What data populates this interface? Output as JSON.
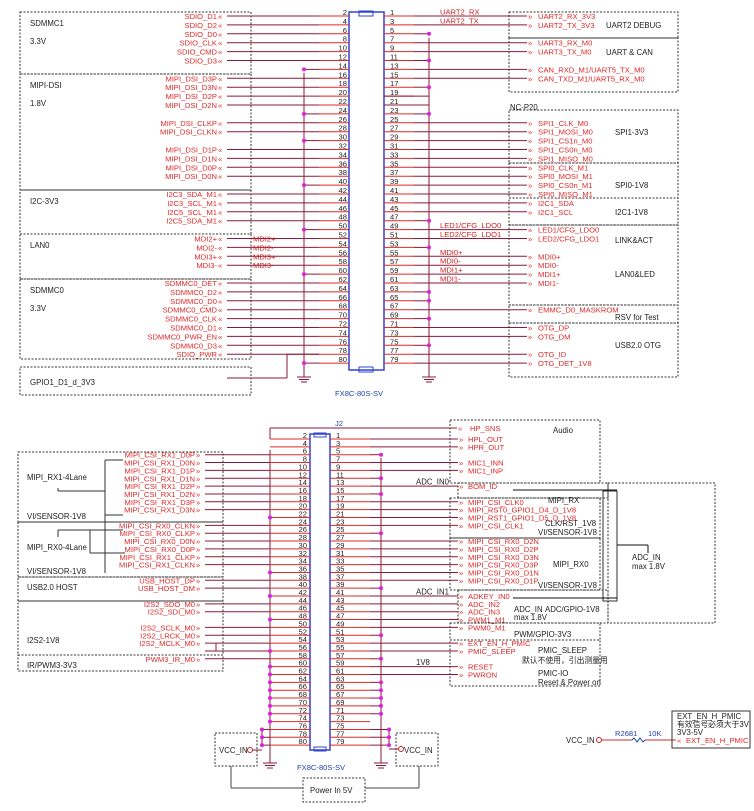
{
  "colors": {
    "signal_text": "#e02828",
    "wire": "#8b1a3a",
    "stub": "#e02828",
    "junction": "#e020e0",
    "connector": "#3344cc",
    "title_blue": "#1e7fd8"
  },
  "top": {
    "part": "FX8C-80S-SV",
    "pin_count": 80,
    "board_title": "NC-P20",
    "left_signals": [
      {
        "pin": 2,
        "label": "SDIO_D1"
      },
      {
        "pin": 4,
        "label": "SDIO_D2"
      },
      {
        "pin": 6,
        "label": "SDIO_D0"
      },
      {
        "pin": 8,
        "label": "SDIO_CLK"
      },
      {
        "pin": 10,
        "label": "SDIO_CMD"
      },
      {
        "pin": 12,
        "label": "SDIO_D3"
      },
      {
        "pin": 16,
        "label": "MIPI_DSI_D3P"
      },
      {
        "pin": 18,
        "label": "MIPI_DSI_D3N"
      },
      {
        "pin": 20,
        "label": "MIPI_DSI_D2P"
      },
      {
        "pin": 22,
        "label": "MIPI_DSI_D2N"
      },
      {
        "pin": 26,
        "label": "MIPI_DSI_CLKP"
      },
      {
        "pin": 28,
        "label": "MIPI_DSI_CLKN"
      },
      {
        "pin": 32,
        "label": "MIPI_DSI_D1P"
      },
      {
        "pin": 34,
        "label": "MIPI_DSI_D1N"
      },
      {
        "pin": 36,
        "label": "MIPI_DSI_D0P"
      },
      {
        "pin": 38,
        "label": "MIPI_DSI_D0N"
      },
      {
        "pin": 42,
        "label": "I2C3_SDA_M1"
      },
      {
        "pin": 44,
        "label": "I2C3_SCL_M1"
      },
      {
        "pin": 46,
        "label": "I2C5_SCL_M1"
      },
      {
        "pin": 48,
        "label": "I2C5_SDA_M1"
      },
      {
        "pin": 52,
        "label": "MDI2+",
        "mid": "MDI2+"
      },
      {
        "pin": 54,
        "label": "MDI2-",
        "mid": "MDI2-"
      },
      {
        "pin": 56,
        "label": "MDI3+",
        "mid": "MDI3+"
      },
      {
        "pin": 58,
        "label": "MDI3-",
        "mid": "MDI3-"
      },
      {
        "pin": 62,
        "label": "SDMMC0_DET"
      },
      {
        "pin": 64,
        "label": "SDMMC0_D2"
      },
      {
        "pin": 66,
        "label": "SDMMC0_D0"
      },
      {
        "pin": 68,
        "label": "SDMMC0_CMD"
      },
      {
        "pin": 70,
        "label": "SDMMC0_CLK"
      },
      {
        "pin": 72,
        "label": "SDMMC0_D1"
      },
      {
        "pin": 74,
        "label": "SDMMC0_PWR_EN"
      },
      {
        "pin": 76,
        "label": "SDMMC0_D3"
      },
      {
        "pin": 78,
        "label": "SDIO_PWR"
      }
    ],
    "left_ground_pins": [
      14,
      24,
      30,
      40,
      50,
      60,
      80
    ],
    "right_signals": [
      {
        "pin": 1,
        "label": "UART2_RX_3V3",
        "mid": "UART2_RX"
      },
      {
        "pin": 3,
        "label": "UART2_TX_3V3",
        "mid": "UART2_TX"
      },
      {
        "pin": 7,
        "label": "UART3_RX_M0"
      },
      {
        "pin": 9,
        "label": "UART3_TX_M0"
      },
      {
        "pin": 13,
        "label": "CAN_RXD_M1/UART5_TX_M0"
      },
      {
        "pin": 15,
        "label": "CAN_TXD_M1/UART5_RX_M0"
      },
      {
        "pin": 25,
        "label": "SPI1_CLK_M0"
      },
      {
        "pin": 27,
        "label": "SPI1_MOSI_M0"
      },
      {
        "pin": 29,
        "label": "SPI1_CS1n_M0"
      },
      {
        "pin": 31,
        "label": "SPI1_CS0n_M0"
      },
      {
        "pin": 33,
        "label": "SPI1_MISO_M0"
      },
      {
        "pin": 35,
        "label": "SPI0_CLK_M1"
      },
      {
        "pin": 37,
        "label": "SPI0_MOSI_M1"
      },
      {
        "pin": 39,
        "label": "SPI0_CS0n_M1"
      },
      {
        "pin": 41,
        "label": "SPI0_MISO_M1"
      },
      {
        "pin": 43,
        "label": "I2C1_SDA"
      },
      {
        "pin": 45,
        "label": "I2C1_SCL"
      },
      {
        "pin": 49,
        "label": "LED1/CFG_LDO0",
        "mid": "LED1/CFG_LDO0"
      },
      {
        "pin": 51,
        "label": "LED2/CFG_LDO1",
        "mid": "LED2/CFG_LDO1"
      },
      {
        "pin": 55,
        "label": "MDI0+",
        "mid": "MDI0+"
      },
      {
        "pin": 57,
        "label": "MDI0-",
        "mid": "MDI0-"
      },
      {
        "pin": 59,
        "label": "MDI1+",
        "mid": "MDI1+"
      },
      {
        "pin": 61,
        "label": "MDI1-",
        "mid": "MDI1-"
      },
      {
        "pin": 67,
        "label": "EMMC_D0_MASKROM"
      },
      {
        "pin": 71,
        "label": "OTG_DP"
      },
      {
        "pin": 73,
        "label": "OTG_DM"
      },
      {
        "pin": 77,
        "label": "OTG_ID"
      },
      {
        "pin": 79,
        "label": "OTG_DET_1V8"
      }
    ],
    "right_ground_pins": [
      5,
      11,
      17,
      23,
      47,
      53,
      63,
      65,
      69,
      75
    ],
    "left_groups": [
      {
        "title": "SDMMC1",
        "sub": "3.3V"
      },
      {
        "title": "MIPI-DSI",
        "sub": "1.8V"
      },
      {
        "title": "I2C-3V3",
        "sub": ""
      },
      {
        "title": "LAN0",
        "sub": ""
      },
      {
        "title": "SDMMC0",
        "sub": "3.3V"
      },
      {
        "title": "GPIO1_D1_d_3V3",
        "sub": ""
      }
    ],
    "right_groups": [
      {
        "title": "UART2 DEBUG"
      },
      {
        "title": "UART & CAN"
      },
      {
        "title": "SPI1-3V3"
      },
      {
        "title": "SPI0-1V8"
      },
      {
        "title": "I2C1-1V8"
      },
      {
        "title": "LINK&ACT",
        "sub": "LAN0&LED"
      },
      {
        "title": "RSV for Test"
      },
      {
        "title": "USB2.0 OTG"
      }
    ]
  },
  "bottom": {
    "ref": "J2",
    "part": "FX8C-80S-SV",
    "pin_count": 80,
    "left_signals": [
      {
        "pin": 6,
        "label": "MIPI_CSI_RX1_D0P"
      },
      {
        "pin": 8,
        "label": "MIPI_CSI_RX1_D0N"
      },
      {
        "pin": 10,
        "label": "MIPI_CSI_RX1_D1P"
      },
      {
        "pin": 12,
        "label": "MIPI_CSI_RX1_D1N"
      },
      {
        "pin": 14,
        "label": "MIPI_CSI_RX1_D2P"
      },
      {
        "pin": 16,
        "label": "MIPI_CSI_RX1_D2N"
      },
      {
        "pin": 18,
        "label": "MIPI_CSI_RX1_D3P"
      },
      {
        "pin": 20,
        "label": "MIPI_CSI_RX1_D3N"
      },
      {
        "pin": 24,
        "label": "MIPI_CSI_RX0_CLKN"
      },
      {
        "pin": 26,
        "label": "MIPI_CSI_RX0_CLKP"
      },
      {
        "pin": 28,
        "label": "MIPI_CSI_RX0_D0N"
      },
      {
        "pin": 30,
        "label": "MIPI_CSI_RX0_D0P"
      },
      {
        "pin": 32,
        "label": "MIPI_CSI_RX1_CLKP"
      },
      {
        "pin": 34,
        "label": "MIPI_CSI_RX1_CLKN"
      },
      {
        "pin": 38,
        "label": "USB_HOST_DP"
      },
      {
        "pin": 40,
        "label": "USB_HOST_DM"
      },
      {
        "pin": 44,
        "label": "I2S2_SDO_M0"
      },
      {
        "pin": 46,
        "label": "I2S2_SDI_M0"
      },
      {
        "pin": 50,
        "label": "I2S2_SCLK_M0"
      },
      {
        "pin": 52,
        "label": "I2S2_LRCK_M0"
      },
      {
        "pin": 54,
        "label": "I2S2_MCLK_M0"
      },
      {
        "pin": 58,
        "label": "PWM3_IR_M0"
      }
    ],
    "left_ground_pins": [
      22,
      36,
      42,
      48,
      56,
      60,
      62,
      64,
      66,
      68,
      70,
      72,
      74
    ],
    "left_vcc_pins": [
      76,
      78,
      80
    ],
    "right_signals": [
      {
        "pin": 1,
        "label": "HPL_OUT"
      },
      {
        "pin": 3,
        "label": "HPR_OUT"
      },
      {
        "pin": 7,
        "label": "MIC1_INN"
      },
      {
        "pin": 9,
        "label": "MIC1_INP"
      },
      {
        "pin": 13,
        "label": "BOM_ID",
        "mid": "ADC_IN0"
      },
      {
        "pin": 17,
        "label": "MIPI_CSI_CLK0"
      },
      {
        "pin": 19,
        "label": "MIPI_RST0_GPIO1_D4_D_1V8"
      },
      {
        "pin": 21,
        "label": "MIPI_RST1_GPIO1_D5_D_1V8"
      },
      {
        "pin": 23,
        "label": "MIPI_CSI_CLK1"
      },
      {
        "pin": 27,
        "label": "MIPI_CSI_RX0_D2N"
      },
      {
        "pin": 29,
        "label": "MIPI_CSI_RX0_D2P"
      },
      {
        "pin": 31,
        "label": "MIPI_CSI_RX0_D3N"
      },
      {
        "pin": 33,
        "label": "MIPI_CSI_RX0_D3P"
      },
      {
        "pin": 35,
        "label": "MIPI_CSI_RX0_D1N"
      },
      {
        "pin": 37,
        "label": "MIPI_CSI_RX0_D1P"
      },
      {
        "pin": 41,
        "label": "ADKEY_IN0",
        "mid": "ADC_IN1"
      },
      {
        "pin": 43,
        "label": "ADC_IN2"
      },
      {
        "pin": 45,
        "label": "ADC_IN3"
      },
      {
        "pin": 47,
        "label": "PWM1_M1"
      },
      {
        "pin": 49,
        "label": "PWM0_M1"
      },
      {
        "pin": 53,
        "label": "EXT_EN_H_PMIC"
      },
      {
        "pin": 55,
        "label": "PMIC_SLEEP"
      },
      {
        "pin": 59,
        "label": "RESET",
        "mid": "1V8"
      },
      {
        "pin": 61,
        "label": "PWRON"
      }
    ],
    "right_ground_pins": [
      5,
      11,
      15,
      25,
      39,
      51,
      57,
      63,
      65,
      67,
      69,
      71
    ],
    "right_vcc_pins": [
      75,
      77,
      79
    ],
    "hp_sns": "HP_SNS",
    "left_groups": [
      {
        "title": "MIPI_RX1-4Lane",
        "foot": "VI/SENSOR-1V8"
      },
      {
        "title": "MIPI_RX0-4Lane",
        "foot": "VI/SENSOR-1V8"
      },
      {
        "title": "USB2.0 HOST"
      },
      {
        "title": "I2S2-1V8"
      },
      {
        "title": "IR/PWM3-3V3"
      }
    ],
    "right_texts": {
      "audio": "Audio",
      "mipi_rx": "MIPI_RX",
      "clk_rst": "CLK/RST_1V8",
      "vi1": "VI/SENSOR-1V8",
      "mipi_rx0": "MIPI_RX0",
      "vi2": "VI/SENSOR-1V8",
      "adc_in": "ADC_IN",
      "adc_max": "max 1.8V",
      "adc_gpio": "ADC/GPIO-1V8",
      "pwm_gpio": "PWM/GPIO-3V3",
      "pmic_sleep": "PMIC_SLEEP",
      "pmic_note": "默认不使用，引出测量用",
      "pmic_io": "PMIC-IO",
      "reset_power": "Reset & Power on",
      "adc_in_outer": "ADC_IN",
      "adc_outer_max": "max 1.8V"
    },
    "vcc_in": "VCC_IN",
    "power_in": "Power In 5V",
    "resistor": {
      "ref": "R2681",
      "value": "10K"
    },
    "ext_box": {
      "title": "EXT_EN_H_PMIC",
      "note": "有效信号必须大于3V",
      "range": "3V3-5V",
      "signal": "EXT_EN_H_PMIC"
    }
  }
}
